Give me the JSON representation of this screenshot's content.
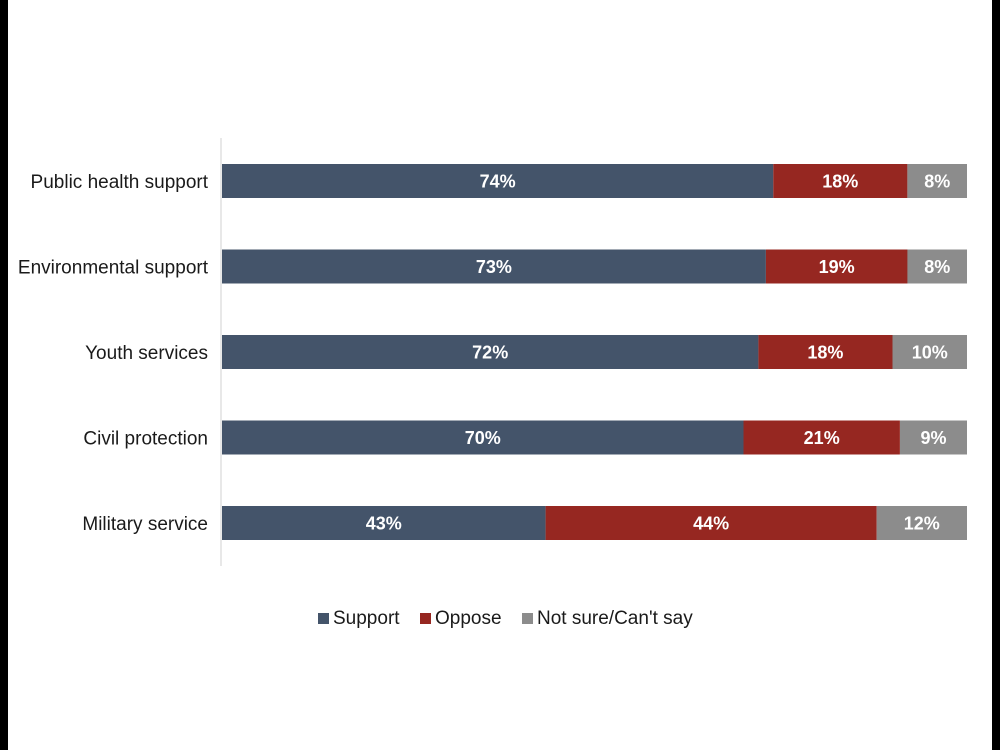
{
  "chart_data": {
    "type": "bar",
    "orientation": "horizontal",
    "stacked": true,
    "categories": [
      "Public health support",
      "Environmental support",
      "Youth services",
      "Civil protection",
      "Military service"
    ],
    "series": [
      {
        "name": "Support",
        "values": [
          74,
          73,
          72,
          70,
          43
        ],
        "labels": [
          "74%",
          "73%",
          "72%",
          "70%",
          "43%"
        ],
        "color": "#44546a"
      },
      {
        "name": "Oppose",
        "values": [
          18,
          19,
          18,
          21,
          44
        ],
        "labels": [
          "18%",
          "19%",
          "18%",
          "21%",
          "44%"
        ],
        "color": "#962721"
      },
      {
        "name": "Not sure/Can't say",
        "values": [
          8,
          8,
          10,
          9,
          12
        ],
        "labels": [
          "8%",
          "8%",
          "10%",
          "9%",
          "12%"
        ],
        "color": "#8c8c8c"
      }
    ],
    "xlim": [
      0,
      100
    ],
    "grid": false,
    "legend_position": "bottom",
    "title": "",
    "xlabel": "",
    "ylabel": ""
  }
}
